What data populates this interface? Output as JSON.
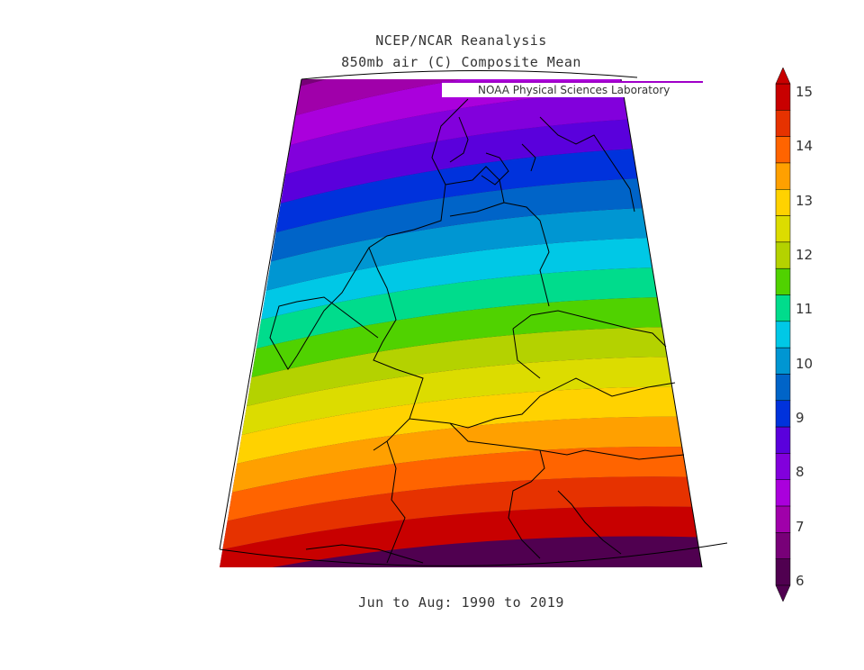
{
  "header": {
    "title_line1": "NCEP/NCAR Reanalysis",
    "title_line2": "850mb air (C) Composite Mean",
    "credit": "NOAA Physical Sciences Laboratory"
  },
  "footer": {
    "period": "Jun to Aug: 1990 to 2019"
  },
  "colorbar": {
    "labels": [
      "15",
      "14",
      "13",
      "12",
      "11",
      "10",
      "9",
      "8",
      "7",
      "6"
    ],
    "colors": [
      "#c80000",
      "#e63200",
      "#ff6400",
      "#ffa000",
      "#ffd200",
      "#dcdc00",
      "#b4d200",
      "#50d200",
      "#00dc8c",
      "#00c8e6",
      "#0096d2",
      "#0064c8",
      "#0032dc",
      "#5a00dc",
      "#8200dc",
      "#aa00dc",
      "#a000aa",
      "#780078",
      "#500050"
    ]
  },
  "map": {
    "variable": "850mb air temperature",
    "units": "C",
    "contour_interval": 0.5,
    "range": [
      6,
      15
    ]
  }
}
